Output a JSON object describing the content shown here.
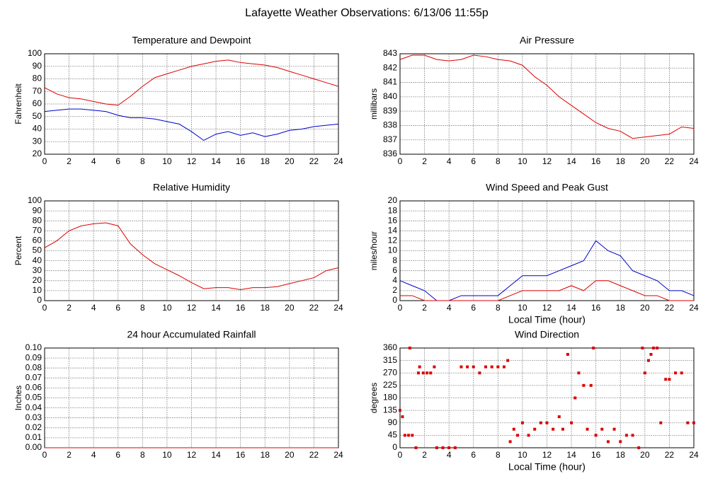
{
  "title": "Lafayette Weather Observations: 6/13/06 11:55p",
  "chart_data": [
    {
      "type": "line",
      "title": "Temperature and Dewpoint",
      "y_label": "Fahrenheit",
      "x": [
        0,
        1,
        2,
        3,
        4,
        5,
        6,
        7,
        8,
        9,
        10,
        11,
        12,
        13,
        14,
        15,
        16,
        17,
        18,
        19,
        20,
        21,
        22,
        23,
        24
      ],
      "series": [
        {
          "color": "#dd0000",
          "values": [
            73,
            68,
            65,
            64,
            62,
            60,
            59,
            66,
            74,
            81,
            84,
            87,
            90,
            92,
            94,
            95,
            93,
            92,
            91,
            89,
            86,
            83,
            80,
            77,
            74
          ]
        },
        {
          "color": "#0000cc",
          "values": [
            54,
            55,
            56,
            56,
            55,
            54,
            51,
            49,
            49,
            48,
            46,
            44,
            38,
            31,
            36,
            38,
            35,
            37,
            34,
            36,
            39,
            40,
            42,
            43,
            44
          ]
        }
      ],
      "xlim": [
        0,
        24
      ],
      "xticks": [
        0,
        2,
        4,
        6,
        8,
        10,
        12,
        14,
        16,
        18,
        20,
        22,
        24
      ],
      "ylim": [
        20,
        100
      ],
      "yticks": [
        20,
        30,
        40,
        50,
        60,
        70,
        80,
        90,
        100
      ],
      "grid": true
    },
    {
      "type": "line",
      "title": "Air Pressure",
      "y_label": "millibars",
      "x": [
        0,
        1,
        2,
        3,
        4,
        5,
        6,
        7,
        8,
        9,
        10,
        11,
        12,
        13,
        14,
        15,
        16,
        17,
        18,
        19,
        20,
        21,
        22,
        23,
        24
      ],
      "series": [
        {
          "color": "#dd0000",
          "values": [
            842.6,
            842.9,
            842.9,
            842.6,
            842.5,
            842.6,
            842.9,
            842.8,
            842.6,
            842.5,
            842.2,
            841.4,
            840.8,
            840.0,
            839.4,
            838.8,
            838.2,
            837.8,
            837.6,
            837.1,
            837.2,
            837.3,
            837.4,
            837.9,
            837.8
          ]
        }
      ],
      "xlim": [
        0,
        24
      ],
      "xticks": [
        0,
        2,
        4,
        6,
        8,
        10,
        12,
        14,
        16,
        18,
        20,
        22,
        24
      ],
      "ylim": [
        836,
        843
      ],
      "yticks": [
        836,
        837,
        838,
        839,
        840,
        841,
        842,
        843
      ],
      "grid": true
    },
    {
      "type": "line",
      "title": "Relative Humidity",
      "y_label": "Percent",
      "x": [
        0,
        1,
        2,
        3,
        4,
        5,
        6,
        7,
        8,
        9,
        10,
        11,
        12,
        13,
        14,
        15,
        16,
        17,
        18,
        19,
        20,
        21,
        22,
        23,
        24
      ],
      "series": [
        {
          "color": "#dd0000",
          "values": [
            53,
            60,
            70,
            75,
            77,
            78,
            75,
            57,
            46,
            37,
            31,
            25,
            18,
            12,
            13,
            13,
            11,
            13,
            13,
            14,
            17,
            20,
            23,
            30,
            33
          ]
        }
      ],
      "xlim": [
        0,
        24
      ],
      "xticks": [
        0,
        2,
        4,
        6,
        8,
        10,
        12,
        14,
        16,
        18,
        20,
        22,
        24
      ],
      "ylim": [
        0,
        100
      ],
      "yticks": [
        0,
        10,
        20,
        30,
        40,
        50,
        60,
        70,
        80,
        90,
        100
      ],
      "grid": true
    },
    {
      "type": "line",
      "title": "Wind Speed and Peak Gust",
      "y_label": "miles/hour",
      "x_label": "Local Time (hour)",
      "x": [
        0,
        1,
        2,
        3,
        4,
        5,
        6,
        7,
        8,
        9,
        10,
        11,
        12,
        13,
        14,
        15,
        16,
        17,
        18,
        19,
        20,
        21,
        22,
        23,
        24
      ],
      "series": [
        {
          "color": "#0000cc",
          "values": [
            4,
            3,
            2,
            0,
            0,
            1,
            1,
            1,
            1,
            3,
            5,
            5,
            5,
            6,
            7,
            8,
            12,
            10,
            9,
            6,
            5,
            4,
            2,
            2,
            1
          ]
        },
        {
          "color": "#dd0000",
          "values": [
            1,
            1,
            0,
            0,
            0,
            0,
            0,
            0,
            0,
            1,
            2,
            2,
            2,
            2,
            3,
            2,
            4,
            4,
            3,
            2,
            1,
            1,
            0,
            0,
            0
          ]
        }
      ],
      "xlim": [
        0,
        24
      ],
      "xticks": [
        0,
        2,
        4,
        6,
        8,
        10,
        12,
        14,
        16,
        18,
        20,
        22,
        24
      ],
      "ylim": [
        0,
        20
      ],
      "yticks": [
        0,
        2,
        4,
        6,
        8,
        10,
        12,
        14,
        16,
        18,
        20
      ],
      "grid": true
    },
    {
      "type": "line",
      "title": "24 hour Accumulated Rainfall",
      "y_label": "Inches",
      "x": [
        0,
        24
      ],
      "series": [
        {
          "color": "#dd0000",
          "values": [
            0,
            0
          ]
        }
      ],
      "xlim": [
        0,
        24
      ],
      "xticks": [
        0,
        2,
        4,
        6,
        8,
        10,
        12,
        14,
        16,
        18,
        20,
        22,
        24
      ],
      "ylim": [
        0,
        0.1
      ],
      "yticks": [
        {
          "value": 0,
          "label": "0.00"
        },
        {
          "value": 0.01,
          "label": "0.01"
        },
        {
          "value": 0.02,
          "label": "0.02"
        },
        {
          "value": 0.03,
          "label": "0.03"
        },
        {
          "value": 0.04,
          "label": "0.04"
        },
        {
          "value": 0.05,
          "label": "0.05"
        },
        {
          "value": 0.06,
          "label": "0.06"
        },
        {
          "value": 0.07,
          "label": "0.07"
        },
        {
          "value": 0.08,
          "label": "0.08"
        },
        {
          "value": 0.09,
          "label": "0.09"
        },
        {
          "value": 0.1,
          "label": "0.10"
        }
      ],
      "grid": true
    },
    {
      "type": "scatter",
      "title": "Wind Direction",
      "y_label": "degrees",
      "x_label": "Local Time (hour)",
      "color": "#dd0000",
      "x": [
        0,
        0.2,
        0.4,
        0.7,
        0.8,
        1,
        1.3,
        1.5,
        1.6,
        1.9,
        2.2,
        2.5,
        2.8,
        3,
        3.5,
        4,
        4.5,
        5,
        5.5,
        6,
        6.5,
        7,
        7.5,
        8,
        8.5,
        8.8,
        9,
        9.3,
        9.6,
        10,
        10.5,
        11,
        11.5,
        12,
        12.5,
        13,
        13.3,
        13.7,
        14,
        14.3,
        14.6,
        15,
        15.3,
        15.6,
        15.8,
        16,
        16.5,
        17,
        17.5,
        18,
        18.5,
        19,
        19.5,
        19.8,
        20,
        20.3,
        20.5,
        20.7,
        21,
        21.3,
        21.7,
        22,
        22.5,
        23,
        23.5,
        24
      ],
      "values": [
        135,
        112,
        45,
        45,
        360,
        45,
        0,
        270,
        292,
        270,
        270,
        270,
        292,
        0,
        0,
        0,
        0,
        292,
        292,
        292,
        270,
        292,
        292,
        292,
        292,
        315,
        22,
        67,
        45,
        90,
        45,
        67,
        90,
        90,
        67,
        112,
        67,
        337,
        90,
        180,
        270,
        225,
        67,
        225,
        360,
        45,
        67,
        22,
        67,
        22,
        45,
        45,
        0,
        360,
        270,
        315,
        337,
        360,
        360,
        90,
        247,
        247,
        270,
        270,
        90,
        90
      ],
      "xlim": [
        0,
        24
      ],
      "xticks": [
        0,
        2,
        4,
        6,
        8,
        10,
        12,
        14,
        16,
        18,
        20,
        22,
        24
      ],
      "ylim": [
        0,
        360
      ],
      "yticks": [
        0,
        45,
        90,
        135,
        180,
        225,
        270,
        315,
        360
      ],
      "grid": true
    }
  ]
}
